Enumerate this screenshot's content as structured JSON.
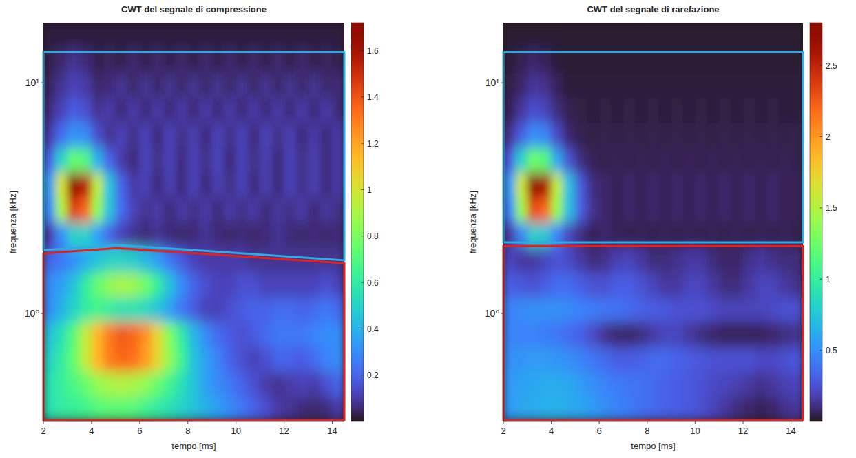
{
  "chart_data": [
    {
      "type": "heatmap",
      "title": "CWT del segnale di compressione",
      "x_label": "tempo [ms]",
      "y_label": "frequenza [kHz]",
      "log": "y",
      "xlim": [
        2,
        14.5
      ],
      "xticks": [
        2,
        4,
        6,
        8,
        10,
        12,
        14
      ],
      "ylim": [
        0.34,
        18.2
      ],
      "yticks": [
        {
          "value": 1,
          "label": "10⁰"
        },
        {
          "value": 10,
          "label": "10¹"
        }
      ],
      "colorbar_range": [
        0,
        1.72
      ],
      "colorbar_ticks": [
        0.2,
        0.4,
        0.6,
        0.8,
        1,
        1.2,
        1.4,
        1.6
      ],
      "x_edges": [
        2,
        2.5,
        3,
        3.5,
        4,
        4.5,
        5,
        5.5,
        6,
        6.5,
        7,
        7.5,
        8,
        8.5,
        9,
        9.5,
        10,
        10.5,
        11,
        11.5,
        12,
        12.5,
        13,
        13.5,
        14,
        14.5
      ],
      "y_edges": [
        0.34,
        0.436,
        0.558,
        0.716,
        0.918,
        1.178,
        1.51,
        1.936,
        2.483,
        3.184,
        4.083,
        5.236,
        6.714,
        8.61,
        11.04,
        14.16,
        18.2
      ],
      "cells": [
        [
          0.55,
          0.6,
          0.62,
          0.65,
          0.7,
          0.72,
          0.72,
          0.7,
          0.65,
          0.6,
          0.55,
          0.5,
          0.45,
          0.4,
          0.35,
          0.3,
          0.25,
          0.2,
          0.15,
          0.1,
          0.08,
          0.06,
          0.05,
          0.06,
          0.1
        ],
        [
          0.55,
          0.62,
          0.68,
          0.75,
          0.85,
          0.9,
          0.92,
          0.9,
          0.85,
          0.75,
          0.65,
          0.55,
          0.45,
          0.35,
          0.3,
          0.25,
          0.2,
          0.15,
          0.1,
          0.08,
          0.1,
          0.12,
          0.1,
          0.15,
          0.2
        ],
        [
          0.5,
          0.6,
          0.75,
          0.95,
          1.15,
          1.3,
          1.35,
          1.33,
          1.22,
          1.05,
          0.85,
          0.65,
          0.45,
          0.35,
          0.28,
          0.2,
          0.15,
          0.12,
          0.15,
          0.2,
          0.2,
          0.18,
          0.22,
          0.28,
          0.3
        ],
        [
          0.45,
          0.55,
          0.72,
          0.95,
          1.15,
          1.3,
          1.38,
          1.35,
          1.25,
          1.05,
          0.82,
          0.6,
          0.42,
          0.3,
          0.22,
          0.18,
          0.15,
          0.18,
          0.22,
          0.25,
          0.25,
          0.25,
          0.28,
          0.3,
          0.3
        ],
        [
          0.3,
          0.4,
          0.5,
          0.6,
          0.65,
          0.6,
          0.55,
          0.55,
          0.52,
          0.45,
          0.35,
          0.25,
          0.18,
          0.12,
          0.12,
          0.15,
          0.18,
          0.2,
          0.2,
          0.22,
          0.22,
          0.2,
          0.22,
          0.25,
          0.22
        ],
        [
          0.3,
          0.35,
          0.45,
          0.6,
          0.75,
          0.85,
          0.9,
          0.88,
          0.78,
          0.62,
          0.45,
          0.3,
          0.2,
          0.15,
          0.12,
          0.12,
          0.15,
          0.15,
          0.12,
          0.12,
          0.12,
          0.12,
          0.12,
          0.15,
          0.12
        ],
        [
          0.2,
          0.25,
          0.3,
          0.38,
          0.45,
          0.5,
          0.5,
          0.48,
          0.42,
          0.35,
          0.25,
          0.18,
          0.12,
          0.1,
          0.1,
          0.1,
          0.1,
          0.08,
          0.08,
          0.08,
          0.08,
          0.08,
          0.08,
          0.08,
          0.08
        ],
        [
          0.1,
          0.3,
          0.5,
          0.5,
          0.35,
          0.2,
          0.12,
          0.08,
          0.06,
          0.08,
          0.06,
          0.05,
          0.06,
          0.08,
          0.06,
          0.05,
          0.06,
          0.05,
          0.06,
          0.08,
          0.06,
          0.05,
          0.06,
          0.05,
          0.06
        ],
        [
          0.3,
          0.9,
          1.45,
          1.35,
          0.85,
          0.45,
          0.22,
          0.12,
          0.08,
          0.1,
          0.06,
          0.1,
          0.07,
          0.1,
          0.06,
          0.1,
          0.07,
          0.1,
          0.06,
          0.09,
          0.07,
          0.1,
          0.06,
          0.09,
          0.07
        ],
        [
          0.35,
          1.0,
          1.7,
          1.55,
          0.95,
          0.45,
          0.2,
          0.1,
          0.12,
          0.06,
          0.11,
          0.06,
          0.12,
          0.06,
          0.11,
          0.07,
          0.12,
          0.06,
          0.11,
          0.06,
          0.12,
          0.07,
          0.11,
          0.06,
          0.1
        ],
        [
          0.2,
          0.5,
          0.75,
          0.7,
          0.4,
          0.2,
          0.1,
          0.06,
          0.12,
          0.07,
          0.12,
          0.06,
          0.12,
          0.07,
          0.12,
          0.06,
          0.12,
          0.07,
          0.11,
          0.06,
          0.12,
          0.07,
          0.11,
          0.06,
          0.1
        ],
        [
          0.1,
          0.22,
          0.32,
          0.3,
          0.15,
          0.08,
          0.12,
          0.07,
          0.12,
          0.06,
          0.12,
          0.07,
          0.11,
          0.06,
          0.12,
          0.07,
          0.12,
          0.06,
          0.12,
          0.07,
          0.11,
          0.06,
          0.1,
          0.06,
          0.1
        ],
        [
          0.06,
          0.12,
          0.18,
          0.15,
          0.08,
          0.1,
          0.06,
          0.1,
          0.06,
          0.1,
          0.06,
          0.1,
          0.06,
          0.1,
          0.06,
          0.1,
          0.06,
          0.1,
          0.06,
          0.1,
          0.06,
          0.1,
          0.06,
          0.1,
          0.06
        ],
        [
          0.04,
          0.08,
          0.12,
          0.1,
          0.05,
          0.06,
          0.08,
          0.05,
          0.08,
          0.05,
          0.08,
          0.05,
          0.08,
          0.05,
          0.08,
          0.05,
          0.08,
          0.05,
          0.08,
          0.05,
          0.08,
          0.05,
          0.08,
          0.05,
          0.06
        ],
        [
          0.03,
          0.05,
          0.08,
          0.06,
          0.03,
          0.04,
          0.03,
          0.05,
          0.03,
          0.05,
          0.03,
          0.05,
          0.03,
          0.05,
          0.03,
          0.05,
          0.03,
          0.05,
          0.03,
          0.05,
          0.03,
          0.05,
          0.03,
          0.04,
          0.03
        ],
        [
          0.02,
          0.02,
          0.02,
          0.02,
          0.02,
          0.02,
          0.02,
          0.02,
          0.02,
          0.02,
          0.02,
          0.02,
          0.02,
          0.02,
          0.02,
          0.02,
          0.02,
          0.02,
          0.02,
          0.02,
          0.02,
          0.02,
          0.02,
          0.02,
          0.02
        ]
      ],
      "regions": [
        {
          "color": "#2aaee4",
          "vertices": [
            [
              2,
              13.6
            ],
            [
              14.5,
              13.6
            ],
            [
              14.5,
              1.7
            ],
            [
              5.05,
              1.98
            ],
            [
              2,
              1.88
            ]
          ]
        },
        {
          "color": "#e3211c",
          "vertices": [
            [
              2,
              1.82
            ],
            [
              5.05,
              1.92
            ],
            [
              14.5,
              1.65
            ],
            [
              14.5,
              0.345
            ],
            [
              2,
              0.345
            ]
          ]
        }
      ]
    },
    {
      "type": "heatmap",
      "title": "CWT del segnale di rarefazione",
      "x_label": "tempo [ms]",
      "y_label": "frequenza [kHz]",
      "log": "y",
      "xlim": [
        2,
        14.5
      ],
      "xticks": [
        2,
        4,
        6,
        8,
        10,
        12,
        14
      ],
      "ylim": [
        0.34,
        18.2
      ],
      "yticks": [
        {
          "value": 1,
          "label": "10⁰"
        },
        {
          "value": 10,
          "label": "10¹"
        }
      ],
      "colorbar_range": [
        0,
        2.8
      ],
      "colorbar_ticks": [
        0.5,
        1,
        1.5,
        2,
        2.5
      ],
      "x_edges": [
        2,
        2.5,
        3,
        3.5,
        4,
        4.5,
        5,
        5.5,
        6,
        6.5,
        7,
        7.5,
        8,
        8.5,
        9,
        9.5,
        10,
        10.5,
        11,
        11.5,
        12,
        12.5,
        13,
        13.5,
        14,
        14.5
      ],
      "y_edges": [
        0.34,
        0.436,
        0.558,
        0.716,
        0.918,
        1.178,
        1.51,
        1.936,
        2.483,
        3.184,
        4.083,
        5.236,
        6.714,
        8.61,
        11.04,
        14.16,
        18.2
      ],
      "cells": [
        [
          0.55,
          0.6,
          0.62,
          0.65,
          0.65,
          0.62,
          0.6,
          0.55,
          0.5,
          0.45,
          0.42,
          0.38,
          0.35,
          0.32,
          0.3,
          0.28,
          0.25,
          0.2,
          0.15,
          0.1,
          0.08,
          0.06,
          0.08,
          0.12,
          0.15
        ],
        [
          0.55,
          0.58,
          0.6,
          0.62,
          0.62,
          0.6,
          0.55,
          0.5,
          0.45,
          0.42,
          0.4,
          0.38,
          0.35,
          0.32,
          0.3,
          0.28,
          0.25,
          0.22,
          0.2,
          0.18,
          0.15,
          0.12,
          0.15,
          0.18,
          0.2
        ],
        [
          0.5,
          0.52,
          0.55,
          0.55,
          0.52,
          0.5,
          0.45,
          0.4,
          0.35,
          0.3,
          0.3,
          0.32,
          0.35,
          0.35,
          0.32,
          0.3,
          0.28,
          0.25,
          0.25,
          0.25,
          0.25,
          0.22,
          0.22,
          0.25,
          0.28
        ],
        [
          0.45,
          0.45,
          0.45,
          0.42,
          0.4,
          0.35,
          0.3,
          0.22,
          0.12,
          0.08,
          0.08,
          0.1,
          0.15,
          0.2,
          0.2,
          0.15,
          0.1,
          0.08,
          0.06,
          0.06,
          0.06,
          0.06,
          0.08,
          0.1,
          0.12
        ],
        [
          0.45,
          0.48,
          0.5,
          0.5,
          0.5,
          0.48,
          0.45,
          0.42,
          0.4,
          0.38,
          0.35,
          0.32,
          0.3,
          0.28,
          0.25,
          0.25,
          0.25,
          0.22,
          0.2,
          0.2,
          0.2,
          0.2,
          0.22,
          0.25,
          0.25
        ],
        [
          0.3,
          0.28,
          0.25,
          0.3,
          0.35,
          0.35,
          0.3,
          0.25,
          0.25,
          0.3,
          0.3,
          0.25,
          0.2,
          0.15,
          0.15,
          0.2,
          0.2,
          0.15,
          0.1,
          0.1,
          0.15,
          0.2,
          0.2,
          0.15,
          0.12
        ],
        [
          0.2,
          0.15,
          0.15,
          0.2,
          0.25,
          0.22,
          0.15,
          0.1,
          0.12,
          0.18,
          0.2,
          0.15,
          0.1,
          0.1,
          0.12,
          0.15,
          0.15,
          0.1,
          0.08,
          0.08,
          0.12,
          0.15,
          0.12,
          0.1,
          0.1
        ],
        [
          0.15,
          0.45,
          0.8,
          0.75,
          0.45,
          0.2,
          0.1,
          0.06,
          0.08,
          0.06,
          0.05,
          0.06,
          0.05,
          0.06,
          0.05,
          0.06,
          0.05,
          0.06,
          0.05,
          0.06,
          0.05,
          0.06,
          0.05,
          0.06,
          0.05
        ],
        [
          0.45,
          1.4,
          2.3,
          2.2,
          1.4,
          0.7,
          0.3,
          0.12,
          0.08,
          0.06,
          0.08,
          0.06,
          0.08,
          0.06,
          0.08,
          0.06,
          0.08,
          0.06,
          0.08,
          0.06,
          0.08,
          0.06,
          0.08,
          0.06,
          0.06
        ],
        [
          0.55,
          1.6,
          2.8,
          2.6,
          1.55,
          0.7,
          0.28,
          0.1,
          0.08,
          0.06,
          0.08,
          0.06,
          0.08,
          0.06,
          0.08,
          0.06,
          0.08,
          0.06,
          0.08,
          0.06,
          0.08,
          0.06,
          0.08,
          0.06,
          0.06
        ],
        [
          0.3,
          0.8,
          1.25,
          1.15,
          0.6,
          0.25,
          0.1,
          0.06,
          0.05,
          0.06,
          0.05,
          0.06,
          0.05,
          0.06,
          0.05,
          0.06,
          0.05,
          0.06,
          0.05,
          0.06,
          0.05,
          0.06,
          0.05,
          0.06,
          0.05
        ],
        [
          0.12,
          0.3,
          0.5,
          0.45,
          0.22,
          0.08,
          0.05,
          0.04,
          0.05,
          0.04,
          0.05,
          0.04,
          0.05,
          0.04,
          0.05,
          0.04,
          0.05,
          0.04,
          0.05,
          0.04,
          0.05,
          0.04,
          0.05,
          0.04,
          0.05
        ],
        [
          0.06,
          0.14,
          0.24,
          0.2,
          0.1,
          0.05,
          0.04,
          0.03,
          0.04,
          0.03,
          0.04,
          0.03,
          0.04,
          0.03,
          0.04,
          0.03,
          0.04,
          0.03,
          0.04,
          0.03,
          0.04,
          0.03,
          0.04,
          0.03,
          0.03
        ],
        [
          0.04,
          0.08,
          0.14,
          0.12,
          0.06,
          0.03,
          0.03,
          0.03,
          0.03,
          0.03,
          0.03,
          0.03,
          0.03,
          0.03,
          0.03,
          0.03,
          0.03,
          0.03,
          0.03,
          0.03,
          0.03,
          0.03,
          0.03,
          0.03,
          0.03
        ],
        [
          0.03,
          0.05,
          0.08,
          0.06,
          0.03,
          0.02,
          0.02,
          0.02,
          0.02,
          0.02,
          0.02,
          0.02,
          0.02,
          0.02,
          0.02,
          0.02,
          0.02,
          0.02,
          0.02,
          0.02,
          0.02,
          0.02,
          0.02,
          0.02,
          0.02
        ],
        [
          0.02,
          0.02,
          0.02,
          0.02,
          0.02,
          0.02,
          0.02,
          0.02,
          0.02,
          0.02,
          0.02,
          0.02,
          0.02,
          0.02,
          0.02,
          0.02,
          0.02,
          0.02,
          0.02,
          0.02,
          0.02,
          0.02,
          0.02,
          0.02,
          0.02
        ]
      ],
      "regions": [
        {
          "color": "#2aaee4",
          "vertices": [
            [
              2,
              13.6
            ],
            [
              14.5,
              13.6
            ],
            [
              14.5,
              2.03
            ],
            [
              2,
              2.03
            ]
          ]
        },
        {
          "color": "#e3211c",
          "vertices": [
            [
              2,
              1.96
            ],
            [
              14.5,
              1.96
            ],
            [
              14.5,
              0.345
            ],
            [
              2,
              0.345
            ]
          ]
        }
      ]
    }
  ]
}
